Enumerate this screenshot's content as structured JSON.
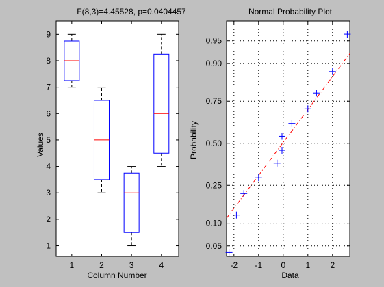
{
  "figure": {
    "background": "#c0c0c0"
  },
  "chart_data": [
    {
      "type": "box",
      "title": "F(8,3)=4.45528, p=0.0404457",
      "xlabel": "Column Number",
      "ylabel": "Values",
      "categories": [
        "1",
        "2",
        "3",
        "4"
      ],
      "ylim": [
        0.6,
        9.5
      ],
      "yticks": [
        "1",
        "2",
        "3",
        "4",
        "5",
        "6",
        "7",
        "8",
        "9"
      ],
      "grid": false,
      "boxes": [
        {
          "min": 7,
          "q1": 7.25,
          "median": 8,
          "q3": 8.75,
          "max": 9
        },
        {
          "min": 3,
          "q1": 3.5,
          "median": 5,
          "q3": 6.5,
          "max": 7
        },
        {
          "min": 1,
          "q1": 1.5,
          "median": 3,
          "q3": 3.75,
          "max": 4
        },
        {
          "min": 4,
          "q1": 4.5,
          "median": 6,
          "q3": 8.25,
          "max": 9
        }
      ],
      "colors": {
        "box": "#0000ff",
        "median": "#ff0000",
        "whisker": "#000000"
      }
    },
    {
      "type": "scatter",
      "title": "Normal Probability Plot",
      "xlabel": "Data",
      "ylabel": "Probability",
      "xlim": [
        -2.3,
        2.7
      ],
      "xticks": [
        "-2",
        "-1",
        "0",
        "1",
        "2"
      ],
      "yticks": [
        "0.05",
        "0.10",
        "0.25",
        "0.50",
        "0.75",
        "0.90",
        "0.95"
      ],
      "grid": true,
      "points": [
        {
          "x": -2.2,
          "p": 0.04
        },
        {
          "x": -1.9,
          "p": 0.125
        },
        {
          "x": -1.6,
          "p": 0.21
        },
        {
          "x": -1.0,
          "p": 0.29
        },
        {
          "x": -0.25,
          "p": 0.375
        },
        {
          "x": -0.05,
          "p": 0.455
        },
        {
          "x": -0.05,
          "p": 0.545
        },
        {
          "x": 0.35,
          "p": 0.625
        },
        {
          "x": 1.0,
          "p": 0.71
        },
        {
          "x": 1.35,
          "p": 0.79
        },
        {
          "x": 2.0,
          "p": 0.875
        },
        {
          "x": 2.6,
          "p": 0.96
        }
      ],
      "reference_line": {
        "x": [
          -2.3,
          2.7
        ],
        "p": [
          0.115,
          0.925
        ]
      },
      "colors": {
        "marker": "#0000ff",
        "reference_line": "#ff0000"
      }
    }
  ]
}
